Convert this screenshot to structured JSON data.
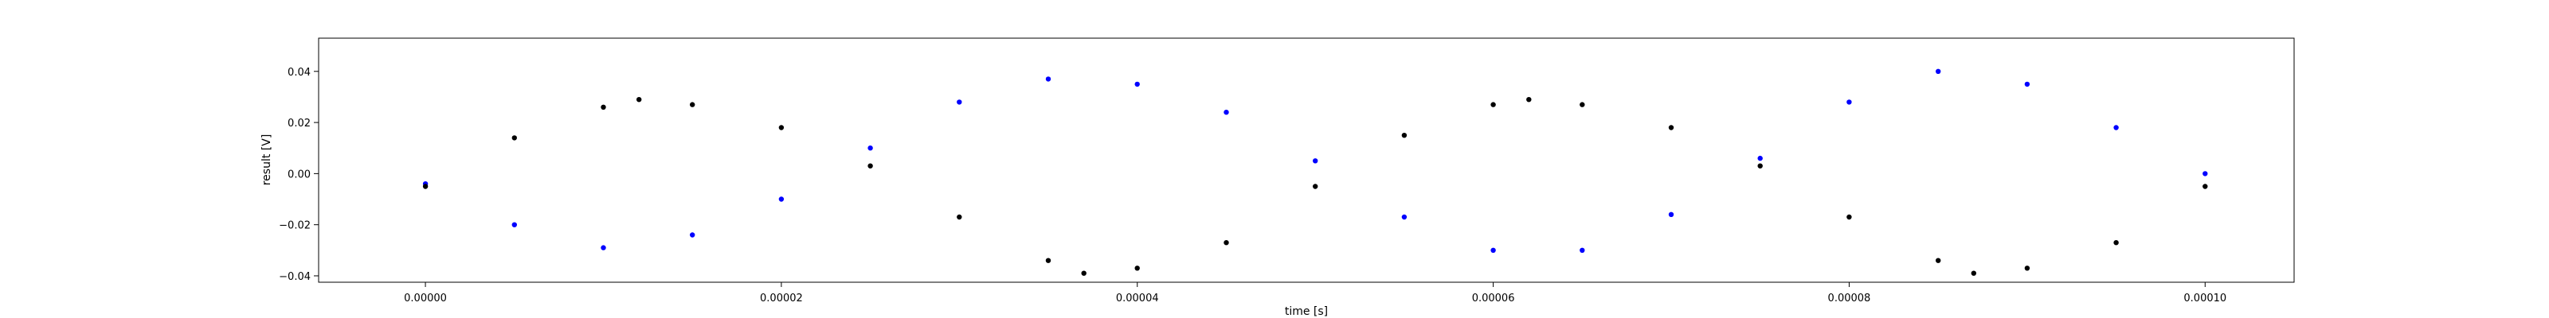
{
  "chart_data": {
    "type": "scatter",
    "title": "",
    "xlabel": "time [s]",
    "ylabel": "result [V]",
    "xlim": [
      -6e-06,
      0.000105
    ],
    "ylim": [
      -0.0425,
      0.053
    ],
    "grid": false,
    "legend": "none",
    "x_ticks": [
      0.0,
      2e-05,
      4e-05,
      6e-05,
      8e-05,
      0.0001
    ],
    "x_tick_labels": [
      "0.00000",
      "0.00002",
      "0.00004",
      "0.00006",
      "0.00008",
      "0.00010"
    ],
    "y_ticks": [
      -0.04,
      -0.02,
      0.0,
      0.02,
      0.04
    ],
    "y_tick_labels": [
      "−0.04",
      "−0.02",
      "0.00",
      "0.02",
      "0.04"
    ],
    "series": [
      {
        "color": "#0000ff",
        "marker": "circle",
        "x": [
          0.0,
          5e-06,
          1e-05,
          1.5e-05,
          2e-05,
          2.5e-05,
          3e-05,
          3.5e-05,
          4e-05,
          4.5e-05,
          5e-05,
          5.5e-05,
          6e-05,
          6.5e-05,
          7e-05,
          7.5e-05,
          8e-05,
          8.5e-05,
          9e-05,
          9.5e-05,
          0.0001
        ],
        "y": [
          -0.004,
          -0.02,
          -0.029,
          -0.024,
          -0.01,
          0.01,
          0.028,
          0.037,
          0.035,
          0.024,
          0.005,
          -0.017,
          -0.03,
          -0.03,
          -0.016,
          0.006,
          0.028,
          0.04,
          0.035,
          0.018,
          0.0
        ]
      },
      {
        "color": "#000000",
        "marker": "circle",
        "x": [
          0.0,
          5e-06,
          1e-05,
          1.2e-05,
          1.5e-05,
          2e-05,
          2.5e-05,
          3e-05,
          3.5e-05,
          3.7e-05,
          4e-05,
          4.5e-05,
          5e-05,
          5.5e-05,
          6e-05,
          6.2e-05,
          6.5e-05,
          7e-05,
          7.5e-05,
          8e-05,
          8.5e-05,
          8.7e-05,
          9e-05,
          9.5e-05,
          0.0001
        ],
        "y": [
          -0.005,
          0.014,
          0.026,
          0.029,
          0.027,
          0.018,
          0.003,
          -0.017,
          -0.034,
          -0.039,
          -0.037,
          -0.027,
          -0.005,
          0.015,
          0.027,
          0.029,
          0.027,
          0.018,
          0.003,
          -0.017,
          -0.034,
          -0.039,
          -0.037,
          -0.027,
          -0.005
        ]
      }
    ]
  }
}
